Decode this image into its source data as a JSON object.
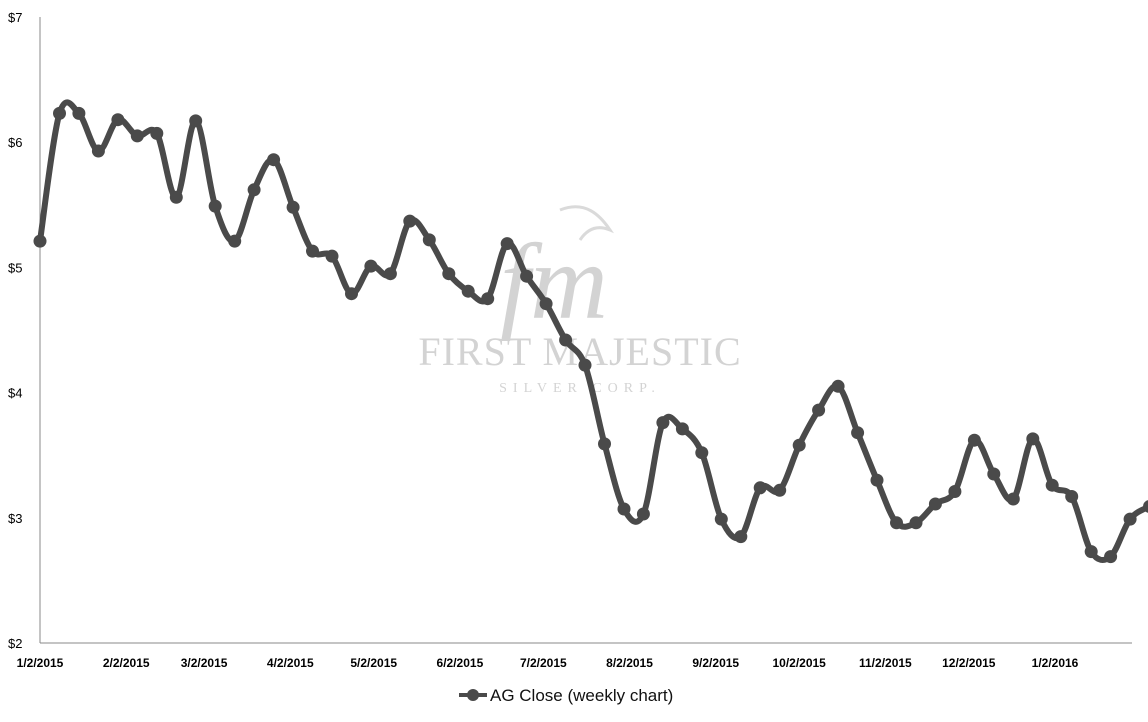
{
  "chart_data": {
    "type": "line",
    "title": "",
    "xlabel": "",
    "ylabel": "",
    "ylim": [
      2,
      7
    ],
    "y_ticks": [
      "$2",
      "$3",
      "$4",
      "$5",
      "$6",
      "$7"
    ],
    "x_ticks": [
      "1/2/2015",
      "2/2/2015",
      "3/2/2015",
      "4/2/2015",
      "5/2/2015",
      "6/2/2015",
      "7/2/2015",
      "8/2/2015",
      "9/2/2015",
      "10/2/2015",
      "11/2/2015",
      "12/2/2015",
      "1/2/2016"
    ],
    "grid": false,
    "legend_position": "bottom",
    "series_color": "#4a4a4a",
    "series": [
      {
        "name": "AG Close (weekly chart)",
        "x": [
          "2015-01-02",
          "2015-01-09",
          "2015-01-16",
          "2015-01-23",
          "2015-01-30",
          "2015-02-06",
          "2015-02-13",
          "2015-02-20",
          "2015-02-27",
          "2015-03-06",
          "2015-03-13",
          "2015-03-20",
          "2015-03-27",
          "2015-04-03",
          "2015-04-10",
          "2015-04-17",
          "2015-04-24",
          "2015-05-01",
          "2015-05-08",
          "2015-05-15",
          "2015-05-22",
          "2015-05-29",
          "2015-06-05",
          "2015-06-12",
          "2015-06-19",
          "2015-06-26",
          "2015-07-03",
          "2015-07-10",
          "2015-07-17",
          "2015-07-24",
          "2015-07-31",
          "2015-08-07",
          "2015-08-14",
          "2015-08-21",
          "2015-08-28",
          "2015-09-04",
          "2015-09-11",
          "2015-09-18",
          "2015-09-25",
          "2015-10-02",
          "2015-10-09",
          "2015-10-16",
          "2015-10-23",
          "2015-10-30",
          "2015-11-06",
          "2015-11-13",
          "2015-11-20",
          "2015-11-27",
          "2015-12-04",
          "2015-12-11",
          "2015-12-18",
          "2015-12-25",
          "2016-01-01",
          "2016-01-08",
          "2016-01-15",
          "2016-01-22",
          "2016-01-29",
          "2016-02-05"
        ],
        "values": [
          5.21,
          6.23,
          6.23,
          5.93,
          6.18,
          6.05,
          6.07,
          5.56,
          6.17,
          5.49,
          5.21,
          5.62,
          5.86,
          5.48,
          5.13,
          5.09,
          4.79,
          5.01,
          4.95,
          5.37,
          5.22,
          4.95,
          4.81,
          4.75,
          5.19,
          4.93,
          4.71,
          4.42,
          4.22,
          3.59,
          3.07,
          3.03,
          3.76,
          3.71,
          3.52,
          2.99,
          2.85,
          3.24,
          3.22,
          3.58,
          3.86,
          4.05,
          3.68,
          3.3,
          2.96,
          2.96,
          3.11,
          3.21,
          3.62,
          3.35,
          3.15,
          3.63,
          3.26,
          3.17,
          2.73,
          2.69,
          2.99,
          3.09
        ]
      }
    ]
  },
  "watermark": {
    "monogram": "fm",
    "name": "FIRST MAJESTIC",
    "subname": "SILVER CORP."
  }
}
